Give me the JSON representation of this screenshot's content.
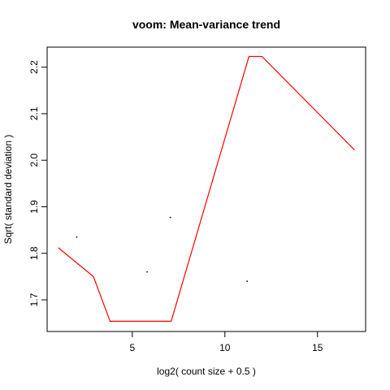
{
  "chart_data": {
    "type": "scatter",
    "title": "voom: Mean-variance trend",
    "xlabel": "log2( count size + 0.5 )",
    "ylabel": "Sqrt( standard deviation )",
    "xlim": [
      0.4,
      17.6
    ],
    "ylim": [
      1.632,
      2.243
    ],
    "x_ticks": [
      5,
      10,
      15
    ],
    "y_ticks": [
      1.7,
      1.8,
      1.9,
      2.0,
      2.1,
      2.2
    ],
    "y_tick_labels": [
      "1.7",
      "1.8",
      "1.9",
      "2.0",
      "2.1",
      "2.2"
    ],
    "grid": false,
    "points": [
      {
        "x": 2.0,
        "y": 1.835
      },
      {
        "x": 5.8,
        "y": 1.76
      },
      {
        "x": 7.05,
        "y": 1.877
      },
      {
        "x": 11.2,
        "y": 1.74
      }
    ],
    "trend": {
      "color": "#ff0000",
      "x": [
        1.0,
        2.9,
        3.8,
        7.1,
        11.3,
        12.0,
        17.0
      ],
      "y": [
        1.812,
        1.75,
        1.654,
        1.654,
        2.223,
        2.223,
        2.022
      ]
    }
  }
}
